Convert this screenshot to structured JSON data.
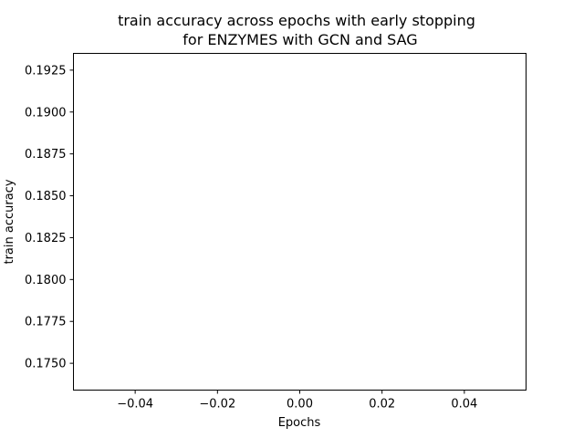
{
  "chart_data": {
    "type": "line",
    "title_lines": [
      "train accuracy across epochs with early stopping",
      "for ENZYMES with GCN and SAG"
    ],
    "xlabel": "Epochs",
    "ylabel": "train accuracy",
    "xlim": [
      -0.055,
      0.055
    ],
    "ylim": [
      0.1734,
      0.1935
    ],
    "x_ticks": [
      -0.04,
      -0.02,
      0.0,
      0.02,
      0.04
    ],
    "x_tick_labels": [
      "−0.04",
      "−0.02",
      "0.00",
      "0.02",
      "0.04"
    ],
    "y_ticks": [
      0.175,
      0.1775,
      0.18,
      0.1825,
      0.185,
      0.1875,
      0.19,
      0.1925
    ],
    "y_tick_labels": [
      "0.1750",
      "0.1775",
      "0.1800",
      "0.1825",
      "0.1850",
      "0.1875",
      "0.1900",
      "0.1925"
    ],
    "grid": false,
    "series": []
  }
}
